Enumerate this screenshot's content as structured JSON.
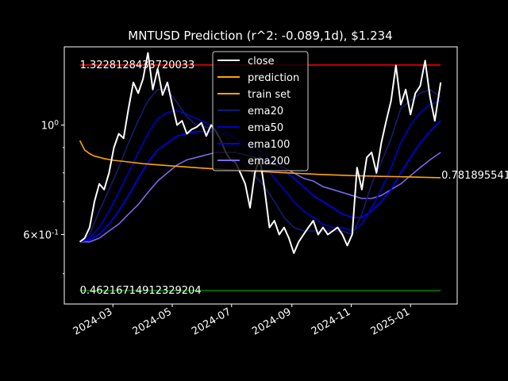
{
  "chart_data": {
    "type": "line",
    "title": "MNTUSD Prediction (r^2: -0.089,1d), $1.234",
    "xlabel": "",
    "ylabel": "",
    "y_scale": "log",
    "xlim": [
      "2024-01-11",
      "2025-02-18"
    ],
    "ylim": [
      0.434,
      1.44
    ],
    "x_ticks": [
      "2024-03",
      "2024-05",
      "2024-07",
      "2024-09",
      "2024-11",
      "2025-01"
    ],
    "y_ticks": [
      {
        "label": "10^0",
        "value": 1.0
      },
      {
        "label": "6×10^-1",
        "value": 0.6
      }
    ],
    "grid": false,
    "legend_position": "top-center",
    "colors": {
      "close": "#ffffff",
      "prediction": "#ffa500",
      "train": "#ffa500",
      "ema20": "#191970",
      "ema50": "#0000cd",
      "ema100": "#0000ff",
      "ema200": "#7b68ee",
      "max_line": "#ff0000",
      "min_line": "#008000",
      "background": "#000000"
    },
    "hlines": [
      {
        "name": "max",
        "value": 1.3228128433720032,
        "label": "1.3228128433720033",
        "color": "#ff0000"
      },
      {
        "name": "min",
        "value": 0.46216714912329204,
        "label": "0.46216714912329204",
        "color": "#008000"
      }
    ],
    "prediction_end_label": "0.781895541",
    "series": [
      {
        "name": "close",
        "color": "#ffffff",
        "x": [
          "2024-01-27",
          "2024-02-01",
          "2024-02-06",
          "2024-02-11",
          "2024-02-16",
          "2024-02-21",
          "2024-02-26",
          "2024-03-02",
          "2024-03-07",
          "2024-03-12",
          "2024-03-17",
          "2024-03-22",
          "2024-03-27",
          "2024-04-01",
          "2024-04-06",
          "2024-04-11",
          "2024-04-16",
          "2024-04-21",
          "2024-04-26",
          "2024-05-01",
          "2024-05-06",
          "2024-05-11",
          "2024-05-16",
          "2024-05-21",
          "2024-05-26",
          "2024-05-31",
          "2024-06-05",
          "2024-06-10",
          "2024-06-15",
          "2024-06-20",
          "2024-06-25",
          "2024-06-30",
          "2024-07-05",
          "2024-07-10",
          "2024-07-15",
          "2024-07-20",
          "2024-07-25",
          "2024-07-30",
          "2024-08-04",
          "2024-08-09",
          "2024-08-14",
          "2024-08-19",
          "2024-08-24",
          "2024-08-29",
          "2024-09-03",
          "2024-09-08",
          "2024-09-13",
          "2024-09-18",
          "2024-09-23",
          "2024-09-28",
          "2024-10-03",
          "2024-10-08",
          "2024-10-13",
          "2024-10-18",
          "2024-10-23",
          "2024-10-28",
          "2024-11-02",
          "2024-11-07",
          "2024-11-12",
          "2024-11-17",
          "2024-11-22",
          "2024-11-27",
          "2024-12-02",
          "2024-12-07",
          "2024-12-12",
          "2024-12-17",
          "2024-12-22",
          "2024-12-27",
          "2025-01-01",
          "2025-01-06",
          "2025-01-11",
          "2025-01-16",
          "2025-01-21",
          "2025-01-26",
          "2025-02-01"
        ],
        "y": [
          0.58,
          0.59,
          0.62,
          0.7,
          0.76,
          0.74,
          0.8,
          0.9,
          0.96,
          0.94,
          1.08,
          1.22,
          1.16,
          1.24,
          1.4,
          1.18,
          1.3,
          1.15,
          1.22,
          1.1,
          1.0,
          1.02,
          0.96,
          0.98,
          0.99,
          1.01,
          0.95,
          1.0,
          0.97,
          0.93,
          0.88,
          0.85,
          0.84,
          0.8,
          0.76,
          0.68,
          0.8,
          0.86,
          0.74,
          0.62,
          0.64,
          0.6,
          0.62,
          0.59,
          0.55,
          0.58,
          0.6,
          0.62,
          0.64,
          0.6,
          0.62,
          0.6,
          0.61,
          0.62,
          0.6,
          0.57,
          0.6,
          0.82,
          0.74,
          0.86,
          0.88,
          0.8,
          0.92,
          1.02,
          1.12,
          1.32,
          1.1,
          1.18,
          1.05,
          1.16,
          1.2,
          1.35,
          1.14,
          1.02,
          1.22
        ]
      },
      {
        "name": "prediction",
        "color": "#ffa500",
        "x": [
          "2024-01-27",
          "2024-02-01",
          "2024-02-06",
          "2024-02-11",
          "2024-02-21",
          "2024-03-02",
          "2024-03-17",
          "2024-04-01",
          "2024-05-01",
          "2024-06-01",
          "2024-07-01",
          "2024-08-01",
          "2024-09-01",
          "2024-10-01",
          "2024-11-01",
          "2024-12-01",
          "2025-01-01",
          "2025-02-01"
        ],
        "y": [
          0.93,
          0.89,
          0.875,
          0.865,
          0.855,
          0.848,
          0.842,
          0.835,
          0.826,
          0.818,
          0.811,
          0.805,
          0.799,
          0.794,
          0.79,
          0.787,
          0.785,
          0.782
        ]
      },
      {
        "name": "train set",
        "color": "#ffa500",
        "x": [],
        "y": []
      },
      {
        "name": "ema20",
        "color": "#191970",
        "x": [
          "2024-01-27",
          "2024-02-06",
          "2024-02-16",
          "2024-02-26",
          "2024-03-07",
          "2024-03-17",
          "2024-03-27",
          "2024-04-06",
          "2024-04-16",
          "2024-04-26",
          "2024-05-06",
          "2024-05-16",
          "2024-05-26",
          "2024-06-05",
          "2024-06-15",
          "2024-06-25",
          "2024-07-05",
          "2024-07-15",
          "2024-07-25",
          "2024-08-04",
          "2024-08-14",
          "2024-08-24",
          "2024-09-03",
          "2024-09-13",
          "2024-09-23",
          "2024-10-03",
          "2024-10-13",
          "2024-10-23",
          "2024-11-02",
          "2024-11-12",
          "2024-11-22",
          "2024-12-02",
          "2024-12-12",
          "2024-12-22",
          "2025-01-01",
          "2025-01-11",
          "2025-01-21",
          "2025-02-01"
        ],
        "y": [
          0.58,
          0.6,
          0.67,
          0.74,
          0.82,
          0.92,
          1.02,
          1.12,
          1.18,
          1.18,
          1.11,
          1.04,
          1.0,
          0.99,
          0.98,
          0.95,
          0.89,
          0.83,
          0.79,
          0.75,
          0.7,
          0.65,
          0.62,
          0.61,
          0.61,
          0.61,
          0.61,
          0.61,
          0.6,
          0.66,
          0.76,
          0.84,
          0.94,
          1.08,
          1.12,
          1.16,
          1.18,
          1.14
        ]
      },
      {
        "name": "ema50",
        "color": "#0000cd",
        "x": [
          "2024-01-27",
          "2024-02-06",
          "2024-02-16",
          "2024-02-26",
          "2024-03-07",
          "2024-03-17",
          "2024-03-27",
          "2024-04-06",
          "2024-04-16",
          "2024-04-26",
          "2024-05-06",
          "2024-05-16",
          "2024-05-26",
          "2024-06-05",
          "2024-06-15",
          "2024-06-25",
          "2024-07-05",
          "2024-07-15",
          "2024-07-25",
          "2024-08-04",
          "2024-08-14",
          "2024-08-24",
          "2024-09-03",
          "2024-09-13",
          "2024-09-23",
          "2024-10-03",
          "2024-10-13",
          "2024-10-23",
          "2024-11-02",
          "2024-11-12",
          "2024-11-22",
          "2024-12-02",
          "2024-12-12",
          "2024-12-22",
          "2025-01-01",
          "2025-01-11",
          "2025-01-21",
          "2025-02-01"
        ],
        "y": [
          0.58,
          0.59,
          0.62,
          0.67,
          0.73,
          0.8,
          0.88,
          0.96,
          1.03,
          1.06,
          1.07,
          1.05,
          1.03,
          1.01,
          0.99,
          0.97,
          0.94,
          0.9,
          0.87,
          0.83,
          0.78,
          0.74,
          0.7,
          0.67,
          0.65,
          0.63,
          0.62,
          0.62,
          0.61,
          0.63,
          0.68,
          0.74,
          0.82,
          0.92,
          1.0,
          1.06,
          1.1,
          1.12
        ]
      },
      {
        "name": "ema100",
        "color": "#0000ff",
        "x": [
          "2024-01-27",
          "2024-02-06",
          "2024-02-16",
          "2024-02-26",
          "2024-03-07",
          "2024-03-17",
          "2024-03-27",
          "2024-04-06",
          "2024-04-16",
          "2024-04-26",
          "2024-05-06",
          "2024-05-16",
          "2024-05-26",
          "2024-06-05",
          "2024-06-15",
          "2024-06-25",
          "2024-07-05",
          "2024-07-15",
          "2024-07-25",
          "2024-08-04",
          "2024-08-14",
          "2024-08-24",
          "2024-09-03",
          "2024-09-13",
          "2024-09-23",
          "2024-10-03",
          "2024-10-13",
          "2024-10-23",
          "2024-11-02",
          "2024-11-12",
          "2024-11-22",
          "2024-12-02",
          "2024-12-12",
          "2024-12-22",
          "2025-01-01",
          "2025-01-11",
          "2025-01-21",
          "2025-02-01"
        ],
        "y": [
          0.58,
          0.585,
          0.6,
          0.63,
          0.67,
          0.72,
          0.78,
          0.84,
          0.89,
          0.92,
          0.95,
          0.96,
          0.97,
          0.97,
          0.97,
          0.96,
          0.94,
          0.92,
          0.9,
          0.87,
          0.84,
          0.81,
          0.78,
          0.75,
          0.72,
          0.7,
          0.68,
          0.66,
          0.65,
          0.65,
          0.67,
          0.7,
          0.74,
          0.8,
          0.86,
          0.92,
          0.97,
          1.02
        ]
      },
      {
        "name": "ema200",
        "color": "#7b68ee",
        "x": [
          "2024-01-27",
          "2024-02-06",
          "2024-02-16",
          "2024-02-26",
          "2024-03-07",
          "2024-03-17",
          "2024-03-27",
          "2024-04-06",
          "2024-04-16",
          "2024-04-26",
          "2024-05-06",
          "2024-05-16",
          "2024-05-26",
          "2024-06-05",
          "2024-06-15",
          "2024-06-25",
          "2024-07-05",
          "2024-07-15",
          "2024-07-25",
          "2024-08-04",
          "2024-08-14",
          "2024-08-24",
          "2024-09-03",
          "2024-09-13",
          "2024-09-23",
          "2024-10-03",
          "2024-10-13",
          "2024-10-23",
          "2024-11-02",
          "2024-11-12",
          "2024-11-22",
          "2024-12-02",
          "2024-12-12",
          "2024-12-22",
          "2025-01-01",
          "2025-01-11",
          "2025-01-21",
          "2025-02-01"
        ],
        "y": [
          0.58,
          0.58,
          0.59,
          0.61,
          0.63,
          0.66,
          0.69,
          0.73,
          0.77,
          0.8,
          0.83,
          0.85,
          0.86,
          0.87,
          0.88,
          0.88,
          0.88,
          0.87,
          0.86,
          0.85,
          0.83,
          0.82,
          0.8,
          0.78,
          0.77,
          0.75,
          0.74,
          0.73,
          0.72,
          0.71,
          0.71,
          0.72,
          0.74,
          0.76,
          0.79,
          0.82,
          0.85,
          0.88
        ]
      }
    ]
  }
}
